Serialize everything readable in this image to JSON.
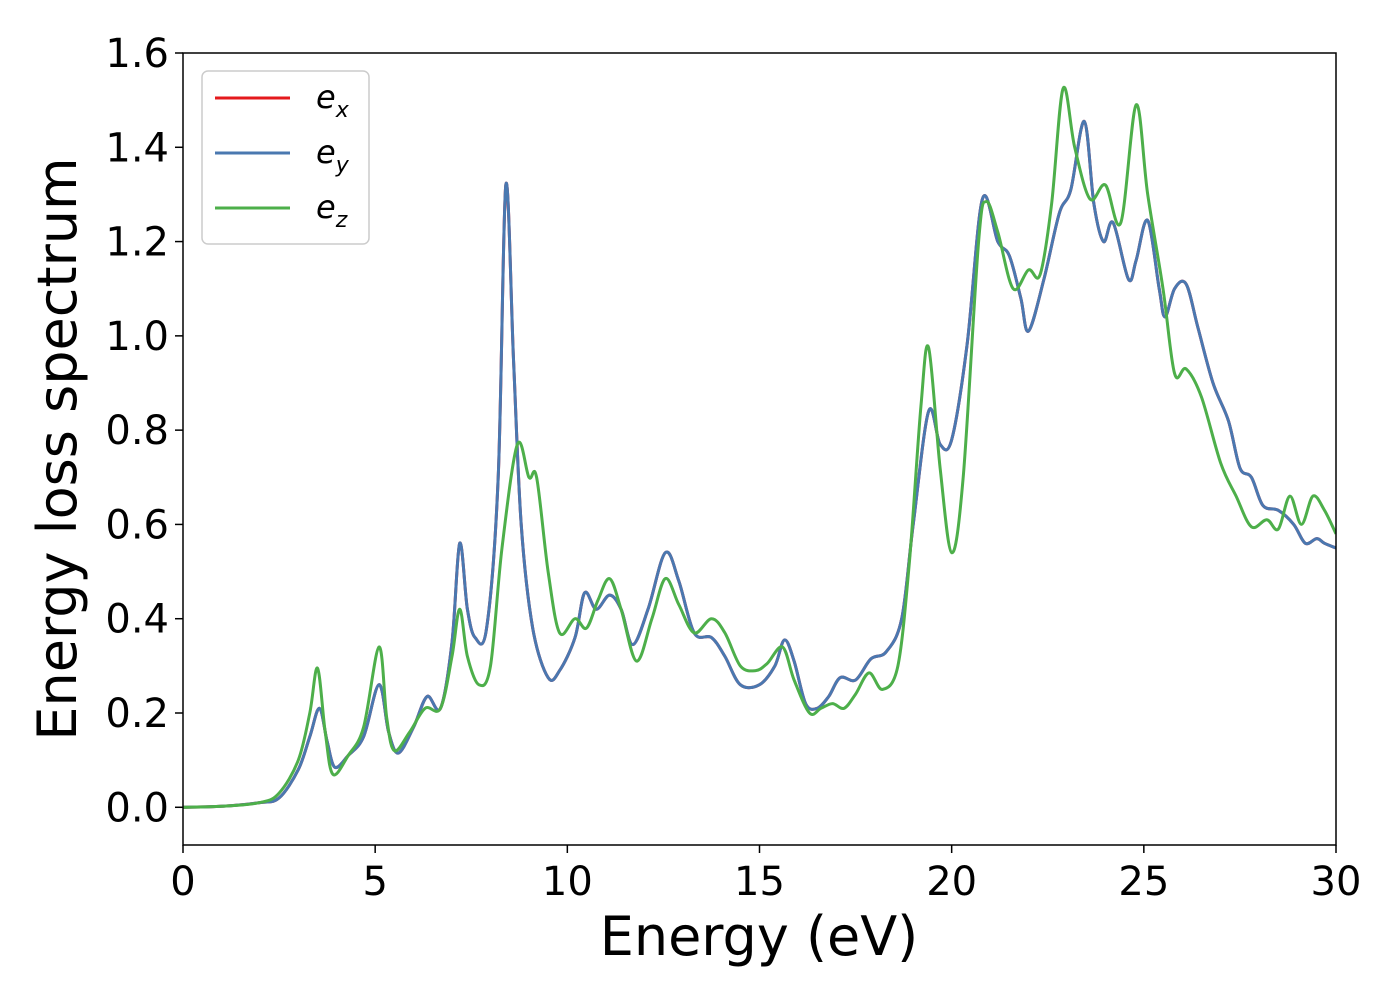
{
  "chart_data": {
    "type": "line",
    "xlabel": "Energy (eV)",
    "ylabel": "Energy loss spectrum",
    "xlim": [
      0,
      30
    ],
    "ylim": [
      -0.08,
      1.6
    ],
    "xticks": [
      "0",
      "5",
      "10",
      "15",
      "20",
      "25",
      "30"
    ],
    "yticks": [
      "0.0",
      "0.2",
      "0.4",
      "0.6",
      "0.8",
      "1.0",
      "1.2",
      "1.4",
      "1.6"
    ],
    "grid": false,
    "legend_position": "top-left",
    "series": [
      {
        "name": "e_x",
        "legend_base": "e",
        "legend_sub": "x",
        "color": "#e41a1c",
        "points": [
          [
            0,
            0
          ],
          [
            1,
            0.002
          ],
          [
            2,
            0.01
          ],
          [
            2.5,
            0.02
          ],
          [
            3,
            0.08
          ],
          [
            3.3,
            0.15
          ],
          [
            3.55,
            0.21
          ],
          [
            3.75,
            0.14
          ],
          [
            3.95,
            0.085
          ],
          [
            4.3,
            0.11
          ],
          [
            4.7,
            0.15
          ],
          [
            5.1,
            0.26
          ],
          [
            5.35,
            0.16
          ],
          [
            5.6,
            0.115
          ],
          [
            6.0,
            0.17
          ],
          [
            6.35,
            0.235
          ],
          [
            6.7,
            0.21
          ],
          [
            7.0,
            0.35
          ],
          [
            7.2,
            0.56
          ],
          [
            7.4,
            0.42
          ],
          [
            7.6,
            0.36
          ],
          [
            7.9,
            0.38
          ],
          [
            8.2,
            0.7
          ],
          [
            8.4,
            1.32
          ],
          [
            8.6,
            0.95
          ],
          [
            8.8,
            0.6
          ],
          [
            9.1,
            0.38
          ],
          [
            9.5,
            0.275
          ],
          [
            9.8,
            0.29
          ],
          [
            10.2,
            0.36
          ],
          [
            10.45,
            0.455
          ],
          [
            10.75,
            0.42
          ],
          [
            11.1,
            0.45
          ],
          [
            11.4,
            0.42
          ],
          [
            11.7,
            0.345
          ],
          [
            12.1,
            0.42
          ],
          [
            12.55,
            0.54
          ],
          [
            12.9,
            0.48
          ],
          [
            13.3,
            0.37
          ],
          [
            13.75,
            0.36
          ],
          [
            14.1,
            0.32
          ],
          [
            14.5,
            0.26
          ],
          [
            15.0,
            0.26
          ],
          [
            15.4,
            0.3
          ],
          [
            15.65,
            0.355
          ],
          [
            15.9,
            0.31
          ],
          [
            16.2,
            0.22
          ],
          [
            16.5,
            0.21
          ],
          [
            16.8,
            0.235
          ],
          [
            17.1,
            0.275
          ],
          [
            17.5,
            0.27
          ],
          [
            17.9,
            0.315
          ],
          [
            18.3,
            0.33
          ],
          [
            18.7,
            0.4
          ],
          [
            19.0,
            0.6
          ],
          [
            19.4,
            0.84
          ],
          [
            19.7,
            0.77
          ],
          [
            20.0,
            0.78
          ],
          [
            20.4,
            0.98
          ],
          [
            20.8,
            1.29
          ],
          [
            21.2,
            1.2
          ],
          [
            21.5,
            1.17
          ],
          [
            21.8,
            1.08
          ],
          [
            22.0,
            1.01
          ],
          [
            22.4,
            1.12
          ],
          [
            22.8,
            1.26
          ],
          [
            23.1,
            1.31
          ],
          [
            23.45,
            1.455
          ],
          [
            23.7,
            1.28
          ],
          [
            23.95,
            1.2
          ],
          [
            24.2,
            1.24
          ],
          [
            24.6,
            1.12
          ],
          [
            24.8,
            1.16
          ],
          [
            25.1,
            1.245
          ],
          [
            25.4,
            1.1
          ],
          [
            25.55,
            1.04
          ],
          [
            25.8,
            1.1
          ],
          [
            26.1,
            1.11
          ],
          [
            26.4,
            1.02
          ],
          [
            26.8,
            0.9
          ],
          [
            27.2,
            0.82
          ],
          [
            27.5,
            0.72
          ],
          [
            27.8,
            0.7
          ],
          [
            28.1,
            0.64
          ],
          [
            28.5,
            0.63
          ],
          [
            28.9,
            0.6
          ],
          [
            29.2,
            0.56
          ],
          [
            29.5,
            0.57
          ],
          [
            29.7,
            0.56
          ],
          [
            30,
            0.55
          ]
        ]
      },
      {
        "name": "e_y",
        "legend_base": "e",
        "legend_sub": "y",
        "color": "#4a78b0",
        "points": [
          [
            0,
            0
          ],
          [
            1,
            0.002
          ],
          [
            2,
            0.01
          ],
          [
            2.5,
            0.02
          ],
          [
            3,
            0.08
          ],
          [
            3.3,
            0.15
          ],
          [
            3.55,
            0.21
          ],
          [
            3.75,
            0.14
          ],
          [
            3.95,
            0.085
          ],
          [
            4.3,
            0.11
          ],
          [
            4.7,
            0.15
          ],
          [
            5.1,
            0.26
          ],
          [
            5.35,
            0.16
          ],
          [
            5.6,
            0.115
          ],
          [
            6.0,
            0.17
          ],
          [
            6.35,
            0.235
          ],
          [
            6.7,
            0.21
          ],
          [
            7.0,
            0.35
          ],
          [
            7.2,
            0.56
          ],
          [
            7.4,
            0.42
          ],
          [
            7.6,
            0.36
          ],
          [
            7.9,
            0.38
          ],
          [
            8.2,
            0.7
          ],
          [
            8.4,
            1.32
          ],
          [
            8.6,
            0.95
          ],
          [
            8.8,
            0.6
          ],
          [
            9.1,
            0.38
          ],
          [
            9.5,
            0.275
          ],
          [
            9.8,
            0.29
          ],
          [
            10.2,
            0.36
          ],
          [
            10.45,
            0.455
          ],
          [
            10.75,
            0.42
          ],
          [
            11.1,
            0.45
          ],
          [
            11.4,
            0.42
          ],
          [
            11.7,
            0.345
          ],
          [
            12.1,
            0.42
          ],
          [
            12.55,
            0.54
          ],
          [
            12.9,
            0.48
          ],
          [
            13.3,
            0.37
          ],
          [
            13.75,
            0.36
          ],
          [
            14.1,
            0.32
          ],
          [
            14.5,
            0.26
          ],
          [
            15.0,
            0.26
          ],
          [
            15.4,
            0.3
          ],
          [
            15.65,
            0.355
          ],
          [
            15.9,
            0.31
          ],
          [
            16.2,
            0.22
          ],
          [
            16.5,
            0.21
          ],
          [
            16.8,
            0.235
          ],
          [
            17.1,
            0.275
          ],
          [
            17.5,
            0.27
          ],
          [
            17.9,
            0.315
          ],
          [
            18.3,
            0.33
          ],
          [
            18.7,
            0.4
          ],
          [
            19.0,
            0.6
          ],
          [
            19.4,
            0.84
          ],
          [
            19.7,
            0.77
          ],
          [
            20.0,
            0.78
          ],
          [
            20.4,
            0.98
          ],
          [
            20.8,
            1.29
          ],
          [
            21.2,
            1.2
          ],
          [
            21.5,
            1.17
          ],
          [
            21.8,
            1.08
          ],
          [
            22.0,
            1.01
          ],
          [
            22.4,
            1.12
          ],
          [
            22.8,
            1.26
          ],
          [
            23.1,
            1.31
          ],
          [
            23.45,
            1.455
          ],
          [
            23.7,
            1.28
          ],
          [
            23.95,
            1.2
          ],
          [
            24.2,
            1.24
          ],
          [
            24.6,
            1.12
          ],
          [
            24.8,
            1.16
          ],
          [
            25.1,
            1.245
          ],
          [
            25.4,
            1.1
          ],
          [
            25.55,
            1.04
          ],
          [
            25.8,
            1.1
          ],
          [
            26.1,
            1.11
          ],
          [
            26.4,
            1.02
          ],
          [
            26.8,
            0.9
          ],
          [
            27.2,
            0.82
          ],
          [
            27.5,
            0.72
          ],
          [
            27.8,
            0.7
          ],
          [
            28.1,
            0.64
          ],
          [
            28.5,
            0.63
          ],
          [
            28.9,
            0.6
          ],
          [
            29.2,
            0.56
          ],
          [
            29.5,
            0.57
          ],
          [
            29.7,
            0.56
          ],
          [
            30,
            0.55
          ]
        ]
      },
      {
        "name": "e_z",
        "legend_base": "e",
        "legend_sub": "z",
        "color": "#4daf4a",
        "points": [
          [
            0,
            0
          ],
          [
            1,
            0.002
          ],
          [
            2,
            0.01
          ],
          [
            2.5,
            0.03
          ],
          [
            3,
            0.1
          ],
          [
            3.3,
            0.2
          ],
          [
            3.5,
            0.295
          ],
          [
            3.7,
            0.16
          ],
          [
            3.9,
            0.07
          ],
          [
            4.3,
            0.11
          ],
          [
            4.7,
            0.17
          ],
          [
            5.1,
            0.34
          ],
          [
            5.3,
            0.19
          ],
          [
            5.5,
            0.12
          ],
          [
            5.9,
            0.16
          ],
          [
            6.3,
            0.21
          ],
          [
            6.7,
            0.21
          ],
          [
            7.0,
            0.32
          ],
          [
            7.2,
            0.42
          ],
          [
            7.4,
            0.32
          ],
          [
            7.7,
            0.26
          ],
          [
            8.0,
            0.3
          ],
          [
            8.3,
            0.55
          ],
          [
            8.7,
            0.77
          ],
          [
            9.0,
            0.7
          ],
          [
            9.2,
            0.7
          ],
          [
            9.5,
            0.5
          ],
          [
            9.8,
            0.37
          ],
          [
            10.2,
            0.4
          ],
          [
            10.5,
            0.38
          ],
          [
            10.8,
            0.44
          ],
          [
            11.1,
            0.485
          ],
          [
            11.4,
            0.42
          ],
          [
            11.8,
            0.31
          ],
          [
            12.2,
            0.4
          ],
          [
            12.55,
            0.485
          ],
          [
            12.9,
            0.43
          ],
          [
            13.3,
            0.37
          ],
          [
            13.75,
            0.4
          ],
          [
            14.1,
            0.37
          ],
          [
            14.5,
            0.3
          ],
          [
            14.9,
            0.29
          ],
          [
            15.2,
            0.305
          ],
          [
            15.6,
            0.34
          ],
          [
            15.9,
            0.27
          ],
          [
            16.3,
            0.2
          ],
          [
            16.6,
            0.21
          ],
          [
            16.9,
            0.22
          ],
          [
            17.2,
            0.21
          ],
          [
            17.5,
            0.24
          ],
          [
            17.85,
            0.285
          ],
          [
            18.2,
            0.25
          ],
          [
            18.6,
            0.3
          ],
          [
            18.9,
            0.52
          ],
          [
            19.2,
            0.85
          ],
          [
            19.4,
            0.975
          ],
          [
            19.7,
            0.72
          ],
          [
            20.0,
            0.54
          ],
          [
            20.3,
            0.7
          ],
          [
            20.7,
            1.2
          ],
          [
            20.9,
            1.285
          ],
          [
            21.2,
            1.22
          ],
          [
            21.6,
            1.1
          ],
          [
            22.0,
            1.14
          ],
          [
            22.3,
            1.13
          ],
          [
            22.6,
            1.28
          ],
          [
            22.9,
            1.525
          ],
          [
            23.2,
            1.4
          ],
          [
            23.6,
            1.29
          ],
          [
            24.0,
            1.32
          ],
          [
            24.4,
            1.24
          ],
          [
            24.8,
            1.49
          ],
          [
            25.1,
            1.3
          ],
          [
            25.5,
            1.1
          ],
          [
            25.8,
            0.92
          ],
          [
            26.1,
            0.93
          ],
          [
            26.5,
            0.87
          ],
          [
            27.0,
            0.73
          ],
          [
            27.4,
            0.66
          ],
          [
            27.8,
            0.595
          ],
          [
            28.2,
            0.61
          ],
          [
            28.5,
            0.59
          ],
          [
            28.8,
            0.66
          ],
          [
            29.1,
            0.6
          ],
          [
            29.4,
            0.66
          ],
          [
            29.7,
            0.63
          ],
          [
            30,
            0.58
          ]
        ]
      }
    ]
  }
}
